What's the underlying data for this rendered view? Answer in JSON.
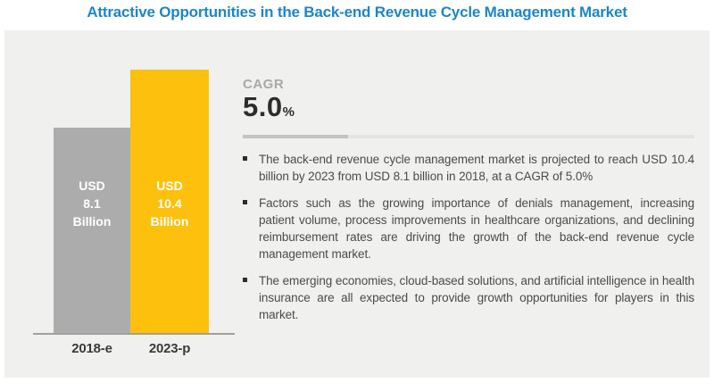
{
  "title": "Attractive Opportunities in the Back-end Revenue Cycle Management Market",
  "colors": {
    "title_blue": "#1c86c8",
    "panel_background": "#f0f0ee",
    "bar_2018": "#acacac",
    "bar_2023": "#fdc00d",
    "axis": "#a0a0a0",
    "cagr_number": "#2d2d2d",
    "body_text": "#4b4b4b"
  },
  "chart_data": {
    "type": "bar",
    "categories": [
      "2018-e",
      "2023-p"
    ],
    "values": [
      8.1,
      10.4
    ],
    "unit": "USD Billion",
    "bar_colors": [
      "#acacac",
      "#fdc00d"
    ],
    "bar_labels": [
      "USD\n8.1\nBillion",
      "USD\n10.4\nBillion"
    ],
    "title": "",
    "xlabel": "",
    "ylabel": "",
    "ylim": [
      0,
      10.4
    ],
    "grid": false,
    "legend": false
  },
  "cagr": {
    "label": "CAGR",
    "value": "5.0",
    "percent_sign": "%"
  },
  "bullets": [
    "The back-end revenue cycle management market is projected to reach USD 10.4 billion by 2023 from USD 8.1 billion in 2018, at a CAGR of 5.0%",
    "Factors such as the growing importance of denials management, increasing patient volume, process improvements in healthcare organizations, and declining reimbursement rates are driving the growth of the back-end revenue cycle management market.",
    "The emerging economies, cloud-based solutions, and artificial intelligence in health insurance are all expected to provide growth opportunities for players in this market."
  ]
}
